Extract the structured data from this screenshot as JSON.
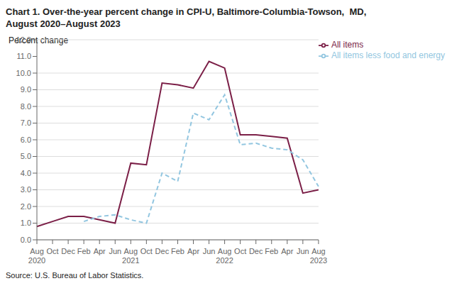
{
  "chart_data": {
    "type": "line",
    "title": "Chart 1. Over-the-year percent change in CPI-U, Baltimore-Columbia-Towson,  MD,\nAugust 2020–August 2023",
    "y_label": "Percent change",
    "annotations": [
      "Source: U.S. Bureau of Labor Statistics."
    ],
    "categories": [
      "Aug\n2020",
      "Oct",
      "Dec",
      "Feb",
      "Apr",
      "Jun",
      "Aug\n2021",
      "Oct",
      "Dec",
      "Feb",
      "Apr",
      "Jun",
      "Aug\n2022",
      "Oct",
      "Dec",
      "Feb",
      "Apr",
      "Jun",
      "Aug\n2023"
    ],
    "series": [
      {
        "name": "All items",
        "color": "#7B1F47",
        "line_style": "solid",
        "values": [
          0.8,
          1.1,
          1.4,
          1.4,
          1.2,
          1.0,
          4.6,
          4.5,
          9.4,
          9.3,
          9.1,
          10.7,
          10.3,
          6.3,
          6.3,
          6.2,
          6.1,
          2.8,
          3.0
        ]
      },
      {
        "name": "All items less food and energy",
        "color": "#92C6E0",
        "line_style": "dashed",
        "values": [
          null,
          null,
          null,
          1.1,
          1.4,
          1.5,
          1.2,
          1.0,
          4.0,
          3.5,
          7.6,
          7.2,
          8.7,
          5.7,
          5.8,
          5.5,
          5.4,
          4.8,
          3.2
        ]
      }
    ],
    "ylim": [
      0.0,
      12.0
    ],
    "yticks": [
      {
        "value": 0,
        "label": "0.0"
      },
      {
        "value": 1,
        "label": "1.0"
      },
      {
        "value": 2,
        "label": "2.0"
      },
      {
        "value": 3,
        "label": "3.0"
      },
      {
        "value": 4,
        "label": "4.0"
      },
      {
        "value": 5,
        "label": "5.0"
      },
      {
        "value": 6,
        "label": "6.0"
      },
      {
        "value": 7,
        "label": "7.0"
      },
      {
        "value": 8,
        "label": "8.0"
      },
      {
        "value": 9,
        "label": "9.0"
      },
      {
        "value": 10,
        "label": "10.0"
      },
      {
        "value": 11,
        "label": "11.0"
      },
      {
        "value": 12,
        "label": "12.0"
      }
    ],
    "grid": "y",
    "legend": "upper right"
  }
}
